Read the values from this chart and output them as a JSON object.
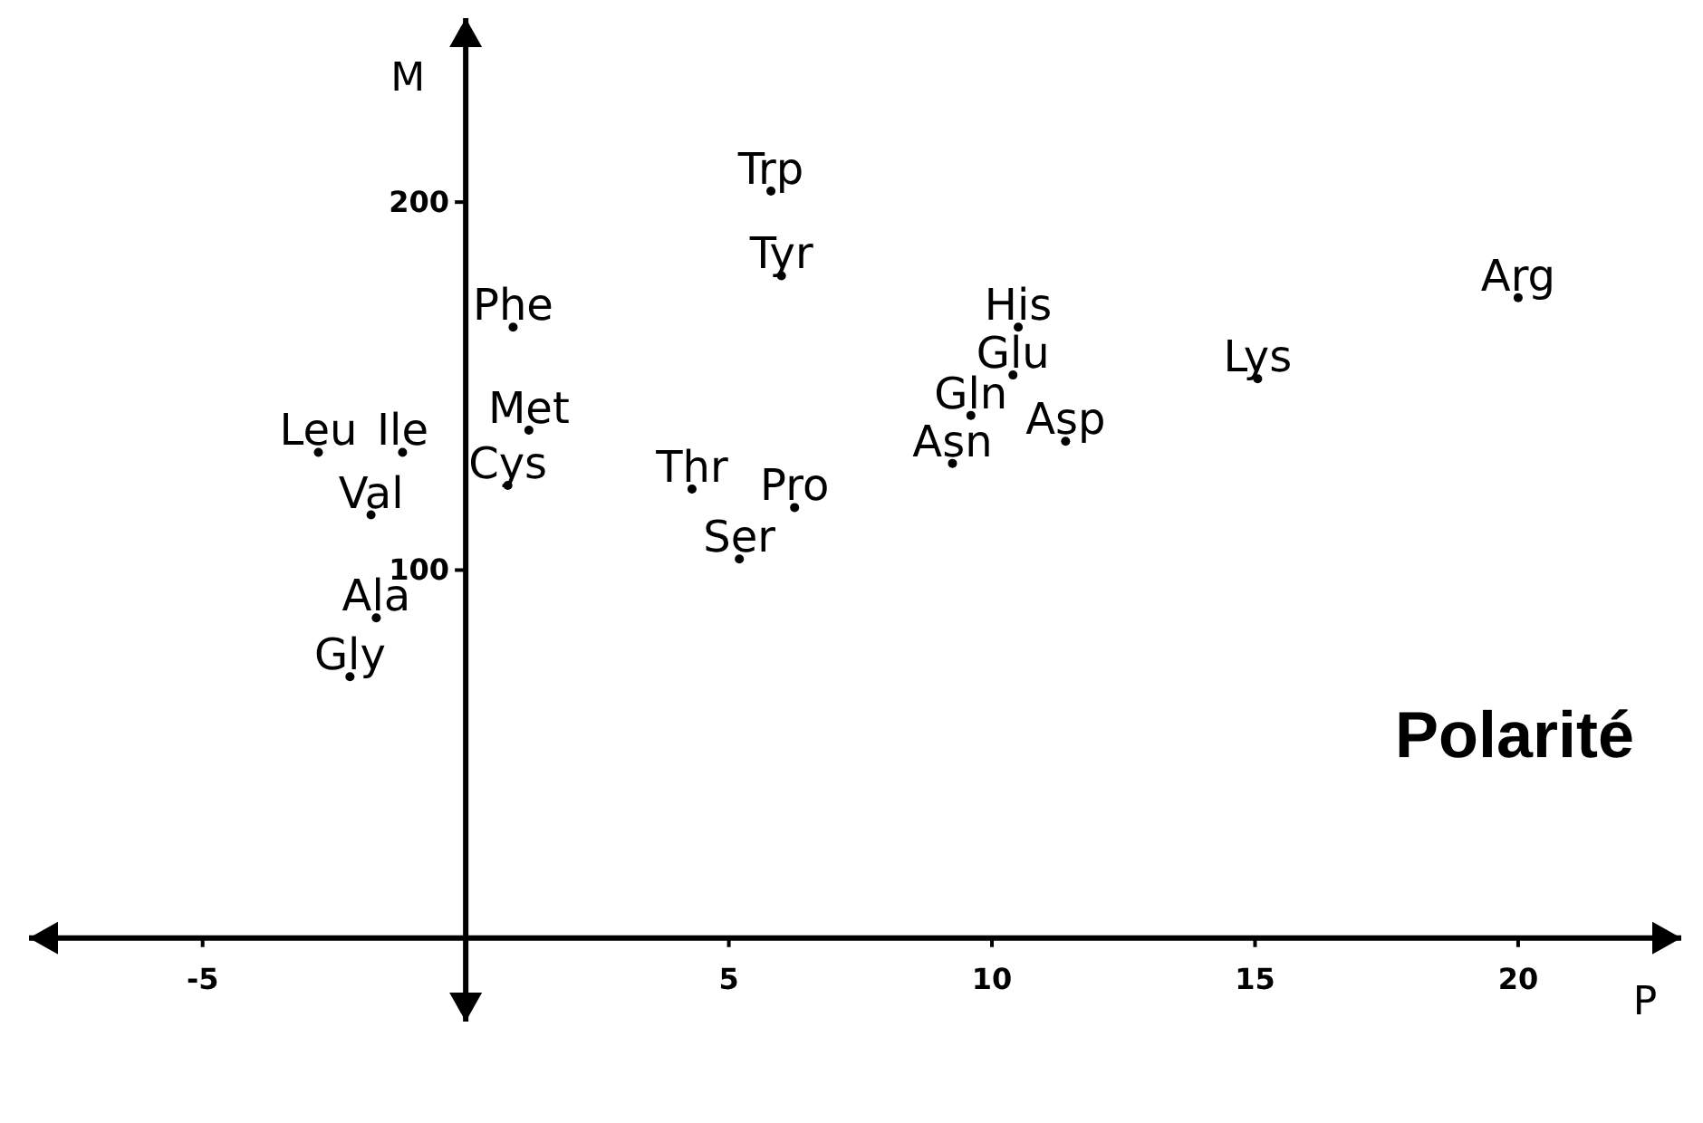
{
  "chart_data": {
    "type": "scatter",
    "xlabel": "P",
    "ylabel": "M",
    "annotations": [
      "Polarité"
    ],
    "xlim": [
      -8.3,
      23.1
    ],
    "ylim": [
      -22.7,
      250
    ],
    "xticks": [
      -5,
      5,
      10,
      15,
      20
    ],
    "yticks": [
      100,
      200
    ],
    "grid": false,
    "marker": "circle",
    "x": [
      5.8,
      6.0,
      0.9,
      20.0,
      10.5,
      10.4,
      15.05,
      9.6,
      11.4,
      9.25,
      1.2,
      0.8,
      -2.8,
      -1.2,
      -1.8,
      4.3,
      6.25,
      5.2,
      -1.7,
      -2.2
    ],
    "values": [
      203,
      180,
      166,
      174,
      166,
      153,
      152,
      142,
      135,
      129,
      138,
      123,
      132,
      132,
      115,
      122,
      117,
      103,
      87,
      71
    ],
    "value_labels": [
      "Trp",
      "Tyr",
      "Phe",
      "Arg",
      "His",
      "Glu",
      "Lys",
      "Gln",
      "Asp",
      "Asn",
      "Met",
      "Cys",
      "Leu",
      "Ile",
      "Val",
      "Thr",
      "Pro",
      "Ser",
      "Ala",
      "Gly"
    ],
    "color": "#000000"
  }
}
